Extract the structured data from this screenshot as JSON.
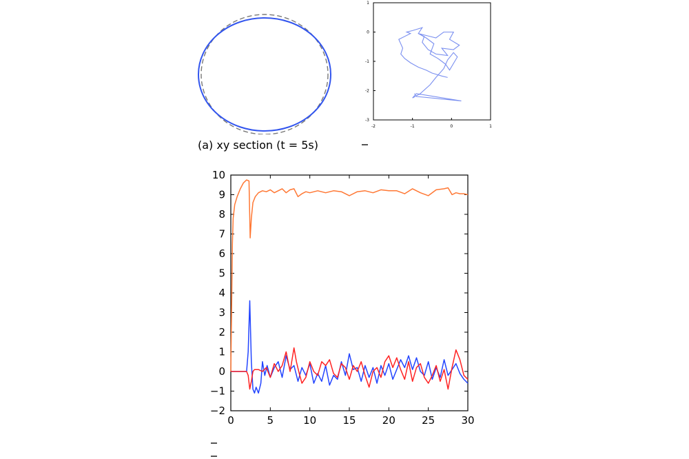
{
  "caption_a": "(a) xy section (t = 5s)",
  "colors": {
    "solid_circle": "#3255ee",
    "dashed_circle": "#777777",
    "trajectory": "#7a8ff0",
    "orange": "#ff7733",
    "blue": "#2244ff",
    "red": "#ff2222"
  },
  "chart_data": [
    {
      "type": "line",
      "title": "",
      "xlabel": "",
      "ylabel": "",
      "grid": false,
      "description_of_shapes": "solid ellipse (wider than tall) overlaid on dashed reference circle",
      "series": [
        {
          "style": "solid",
          "rx": 1.0,
          "ry": 0.94
        },
        {
          "style": "dashed",
          "rx": 0.97,
          "ry": 0.97
        }
      ]
    },
    {
      "type": "line",
      "xlim": [
        -2,
        1
      ],
      "ylim": [
        -3,
        1
      ],
      "x_ticks": [
        "-2",
        "-1",
        "0",
        "1"
      ],
      "y_ticks": [
        "1",
        "0",
        "-1",
        "-2",
        "-3"
      ],
      "grid": false,
      "series": [
        {
          "x": [
            -0.1,
            -0.25,
            -0.5,
            -0.65,
            -0.85,
            -1.05,
            -1.2,
            -1.3,
            -1.25,
            -1.35,
            -1.05,
            -1.15,
            -1.0,
            -0.75,
            -0.85,
            -0.55,
            -0.4,
            -0.3,
            -0.2,
            0.05,
            -0.05,
            0.2,
            0.05,
            -0.25,
            -0.1,
            -0.4,
            -0.6,
            -0.75,
            -0.7,
            -0.85,
            -0.65,
            -0.45,
            -0.55,
            -0.35,
            -0.25,
            -0.15,
            -0.05,
            0.15,
            0.05,
            -0.1,
            -0.2,
            -0.4,
            -0.55,
            -0.8,
            -1.0,
            -0.9,
            0.25,
            -0.9,
            -0.95
          ],
          "y": [
            -1.55,
            -1.5,
            -1.4,
            -1.3,
            -1.2,
            -1.05,
            -0.9,
            -0.75,
            -0.55,
            -0.25,
            -0.05,
            0.0,
            0.05,
            0.15,
            -0.05,
            -0.15,
            -0.2,
            -0.1,
            0.0,
            0.0,
            -0.25,
            -0.45,
            -0.6,
            -0.55,
            -0.8,
            -0.75,
            -0.6,
            -0.35,
            -0.15,
            -0.05,
            -0.2,
            -0.4,
            -0.75,
            -0.9,
            -1.0,
            -1.1,
            -1.3,
            -0.85,
            -0.7,
            -0.95,
            -1.25,
            -1.55,
            -1.8,
            -2.1,
            -2.25,
            -2.1,
            -2.35,
            -2.2,
            -2.1
          ]
        }
      ]
    },
    {
      "type": "line",
      "xlim": [
        0,
        30
      ],
      "ylim": [
        -2,
        10
      ],
      "x_ticks": [
        "0",
        "5",
        "10",
        "15",
        "20",
        "25",
        "30"
      ],
      "y_ticks": [
        "10",
        "9",
        "8",
        "7",
        "6",
        "5",
        "4",
        "3",
        "2",
        "1",
        "0",
        "−1",
        "−2"
      ],
      "grid": false,
      "series": [
        {
          "color_key": "orange",
          "x": [
            0,
            0.1,
            0.2,
            0.3,
            0.5,
            0.8,
            1.2,
            1.6,
            2.0,
            2.3,
            2.45,
            2.6,
            2.8,
            3.1,
            3.5,
            4.0,
            4.5,
            5.0,
            5.5,
            6.0,
            6.5,
            7.0,
            7.5,
            8.0,
            8.5,
            9.0,
            9.5,
            10.0,
            11.0,
            12.0,
            13.0,
            14.0,
            15.0,
            16.0,
            17.0,
            18.0,
            19.0,
            20.0,
            21.0,
            22.0,
            23.0,
            24.0,
            25.0,
            26.0,
            27.0,
            27.5,
            28.0,
            28.5,
            29.0,
            29.5,
            30.0
          ],
          "y": [
            0,
            3.0,
            6.5,
            7.8,
            8.5,
            8.9,
            9.3,
            9.6,
            9.75,
            9.7,
            6.8,
            7.8,
            8.6,
            8.9,
            9.1,
            9.2,
            9.15,
            9.25,
            9.1,
            9.2,
            9.3,
            9.1,
            9.25,
            9.3,
            8.9,
            9.05,
            9.15,
            9.1,
            9.2,
            9.1,
            9.2,
            9.15,
            8.95,
            9.15,
            9.2,
            9.1,
            9.25,
            9.2,
            9.2,
            9.05,
            9.3,
            9.1,
            8.95,
            9.25,
            9.3,
            9.35,
            9.0,
            9.1,
            9.05,
            9.05,
            9.0
          ]
        },
        {
          "color_key": "blue",
          "x": [
            0,
            1.0,
            2.0,
            2.2,
            2.4,
            2.6,
            2.8,
            3.0,
            3.2,
            3.5,
            3.8,
            4.0,
            4.3,
            4.6,
            5.0,
            5.5,
            6.0,
            6.5,
            7.0,
            7.5,
            8.0,
            8.5,
            9.0,
            9.5,
            10.0,
            10.5,
            11.0,
            11.5,
            12.0,
            12.5,
            13.0,
            13.5,
            14.0,
            14.5,
            15.0,
            15.5,
            16.0,
            16.5,
            17.0,
            17.5,
            18.0,
            18.5,
            19.0,
            19.5,
            20.0,
            20.5,
            21.0,
            21.5,
            22.0,
            22.5,
            23.0,
            23.5,
            24.0,
            24.5,
            25.0,
            25.5,
            26.0,
            26.5,
            27.0,
            27.5,
            28.0,
            28.5,
            29.0,
            29.5,
            30.0
          ],
          "y": [
            0,
            0,
            0,
            1.0,
            3.6,
            0.5,
            -0.9,
            -1.1,
            -0.8,
            -1.1,
            -0.6,
            0.5,
            -0.2,
            0.3,
            -0.3,
            0.2,
            0.5,
            -0.3,
            0.8,
            0.1,
            0.3,
            -0.5,
            0.2,
            -0.2,
            0.4,
            -0.6,
            -0.1,
            -0.5,
            0.3,
            -0.7,
            -0.2,
            -0.4,
            0.5,
            -0.2,
            0.9,
            0.1,
            0.2,
            -0.5,
            0.3,
            -0.3,
            0.2,
            -0.6,
            0.3,
            -0.2,
            0.4,
            -0.4,
            0.1,
            0.6,
            0.2,
            0.8,
            0.1,
            0.7,
            0.0,
            -0.2,
            0.5,
            -0.4,
            0.2,
            -0.3,
            0.6,
            -0.2,
            0.1,
            0.4,
            -0.1,
            -0.4,
            -0.6
          ]
        },
        {
          "color_key": "red",
          "x": [
            0,
            1.0,
            2.0,
            2.2,
            2.4,
            2.6,
            2.8,
            3.0,
            3.5,
            4.0,
            4.5,
            5.0,
            5.5,
            6.0,
            6.5,
            7.0,
            7.5,
            8.0,
            8.3,
            8.6,
            9.0,
            9.5,
            10.0,
            10.5,
            11.0,
            11.5,
            12.0,
            12.5,
            13.0,
            13.5,
            14.0,
            14.5,
            15.0,
            15.5,
            16.0,
            16.5,
            17.0,
            17.5,
            18.0,
            18.5,
            19.0,
            19.5,
            20.0,
            20.5,
            21.0,
            21.5,
            22.0,
            22.5,
            23.0,
            23.5,
            24.0,
            24.5,
            25.0,
            25.5,
            26.0,
            26.5,
            27.0,
            27.5,
            28.0,
            28.5,
            29.0,
            29.5,
            30.0
          ],
          "y": [
            0,
            0,
            0,
            -0.2,
            -0.9,
            -0.5,
            0.0,
            0.1,
            0.1,
            0.0,
            0.2,
            -0.3,
            0.4,
            0.0,
            0.3,
            1.0,
            0.0,
            1.2,
            0.5,
            0.0,
            -0.6,
            -0.3,
            0.5,
            0.0,
            -0.2,
            0.5,
            0.3,
            0.6,
            -0.1,
            -0.3,
            0.4,
            0.2,
            -0.4,
            0.3,
            0.0,
            0.5,
            -0.2,
            -0.8,
            0.0,
            0.2,
            -0.3,
            0.5,
            0.8,
            0.2,
            0.7,
            0.1,
            -0.4,
            0.5,
            -0.5,
            0.2,
            0.4,
            -0.3,
            -0.6,
            -0.2,
            0.3,
            -0.5,
            0.1,
            -0.9,
            0.2,
            1.1,
            0.6,
            -0.2,
            -0.4
          ]
        }
      ]
    }
  ]
}
